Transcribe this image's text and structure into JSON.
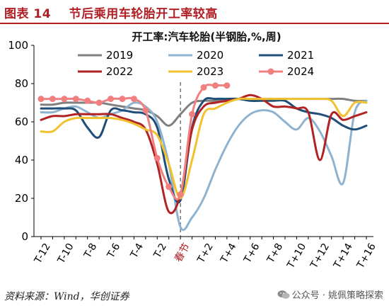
{
  "figure": {
    "label": "图表  14",
    "heading": "节后乘用车轮胎开工率较高"
  },
  "footer": {
    "source": "资料来源：Wind，华创证券",
    "watermark": "公众号 · 姚佩策略探索",
    "watermark_icon": "wechat-icon"
  },
  "chart_data": {
    "type": "line",
    "title": "开工率:汽车轮胎(半钢胎,%,周)",
    "xlabel": "",
    "ylabel": "",
    "ylim": [
      0,
      100
    ],
    "yticks": [
      0,
      20,
      40,
      60,
      80,
      100
    ],
    "x": [
      "T-12",
      "T-11",
      "T-10",
      "T-9",
      "T-8",
      "T-7",
      "T-6",
      "T-5",
      "T-4",
      "T-3",
      "T-2",
      "T-1",
      "春节",
      "T+1",
      "T+2",
      "T+3",
      "T+4",
      "T+5",
      "T+6",
      "T+7",
      "T+8",
      "T+9",
      "T+10",
      "T+11",
      "T+12",
      "T+13",
      "T+14",
      "T+15",
      "T+16"
    ],
    "xtick_labels": [
      "T-12",
      "T-10",
      "T-8",
      "T-6",
      "T-4",
      "T-2",
      "春节",
      "T+2",
      "T+4",
      "T+6",
      "T+8",
      "T+10",
      "T+12",
      "T+14",
      "T+16"
    ],
    "marker": "春节",
    "grid": false,
    "legend_position": "top",
    "series": [
      {
        "name": "2019",
        "color": "#7f7f7f",
        "marker": "none",
        "values": [
          69,
          69,
          70,
          70,
          70,
          70,
          69,
          68,
          67,
          66,
          63,
          58,
          64,
          70,
          71,
          71,
          72,
          72,
          72,
          72,
          72,
          72,
          72,
          72,
          72,
          72,
          72,
          71,
          71
        ]
      },
      {
        "name": "2020",
        "color": "#8db3d1",
        "marker": "none",
        "values": [
          65,
          65,
          67,
          68,
          65,
          62,
          64,
          66,
          70,
          68,
          60,
          38,
          5,
          10,
          20,
          35,
          48,
          58,
          64,
          66,
          65,
          60,
          56,
          62,
          55,
          42,
          28,
          65,
          71
        ]
      },
      {
        "name": "2021",
        "color": "#1f4e79",
        "marker": "none",
        "values": [
          67,
          67,
          67,
          66,
          57,
          52,
          66,
          66,
          65,
          64,
          57,
          30,
          19,
          57,
          71,
          72,
          72,
          72,
          71,
          71,
          71,
          71,
          67,
          65,
          64,
          62,
          58,
          56,
          58
        ]
      },
      {
        "name": "2022",
        "color": "#b22222",
        "marker": "none",
        "values": [
          61,
          63,
          63,
          64,
          64,
          64,
          64,
          62,
          60,
          56,
          38,
          13,
          22,
          56,
          68,
          70,
          71,
          72,
          74,
          72,
          68,
          68,
          67,
          65,
          40,
          64,
          61,
          63,
          65
        ]
      },
      {
        "name": "2023",
        "color": "#f2c12e",
        "marker": "none",
        "values": [
          55,
          55,
          60,
          62,
          62,
          62,
          62,
          61,
          59,
          56,
          53,
          38,
          20,
          40,
          64,
          67,
          70,
          72,
          72,
          72,
          72,
          72,
          72,
          72,
          72,
          71,
          63,
          70,
          70
        ]
      },
      {
        "name": "2024",
        "color": "#f08080",
        "marker": "circle",
        "values": [
          72,
          72,
          72,
          72,
          71,
          70,
          72,
          72,
          72,
          66,
          41,
          26,
          22,
          64,
          78,
          79,
          79,
          null,
          null,
          null,
          null,
          null,
          null,
          null,
          null,
          null,
          null,
          null,
          null
        ]
      }
    ]
  }
}
